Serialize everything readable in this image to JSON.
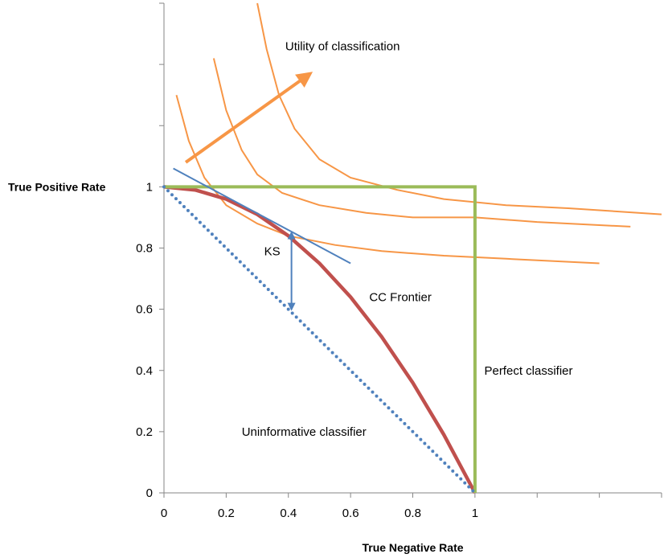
{
  "chart_data": {
    "type": "line",
    "title": "",
    "xlabel": "True Negative Rate",
    "ylabel": "True Positive Rate",
    "xlim": [
      0,
      1.6
    ],
    "ylim": [
      0,
      1.6
    ],
    "x_tick_labels": [
      "0",
      "0.2",
      "0.4",
      "0.6",
      "0.8",
      "1"
    ],
    "x_tick_values": [
      0,
      0.2,
      0.4,
      0.6,
      0.8,
      1
    ],
    "y_tick_labels": [
      "0",
      "0.2",
      "0.4",
      "0.6",
      "0.8",
      "1"
    ],
    "y_tick_values": [
      0,
      0.2,
      0.4,
      0.6,
      0.8,
      1
    ],
    "x_tick_marks": [
      0,
      0.2,
      0.4,
      0.6,
      0.8,
      1,
      1.2,
      1.4,
      1.6
    ],
    "y_tick_marks": [
      0,
      0.2,
      0.4,
      0.6,
      0.8,
      1,
      1.2,
      1.4,
      1.6
    ],
    "grid": false,
    "colors": {
      "cc_frontier": "#c0504d",
      "perfect": "#9bbb59",
      "uninformative": "#4f81bd",
      "tangent": "#4f81bd",
      "ks_arrow": "#4f81bd",
      "utility": "#f79646",
      "axis": "#868686"
    },
    "series": [
      {
        "key": "cc_frontier",
        "style": "solid",
        "x": [
          0,
          0.1,
          0.2,
          0.3,
          0.4,
          0.5,
          0.6,
          0.7,
          0.8,
          0.9,
          1.0
        ],
        "y": [
          1.0,
          0.99,
          0.96,
          0.91,
          0.84,
          0.75,
          0.64,
          0.51,
          0.36,
          0.19,
          0.0
        ]
      },
      {
        "key": "perfect",
        "style": "solid",
        "x": [
          0,
          1,
          1
        ],
        "y": [
          1,
          1,
          0
        ]
      },
      {
        "key": "uninformative",
        "style": "dotted",
        "x": [
          0,
          1
        ],
        "y": [
          1,
          0
        ]
      },
      {
        "key": "tangent",
        "style": "solid",
        "x": [
          0.03,
          0.6
        ],
        "y": [
          1.06,
          0.75
        ]
      }
    ],
    "utility_curves": [
      {
        "x": [
          0.3,
          0.33,
          0.37,
          0.42,
          0.5,
          0.6,
          0.75,
          0.9,
          1.1,
          1.3,
          1.6
        ],
        "y": [
          1.6,
          1.45,
          1.3,
          1.19,
          1.09,
          1.03,
          0.99,
          0.96,
          0.94,
          0.93,
          0.91
        ]
      },
      {
        "x": [
          0.16,
          0.2,
          0.25,
          0.3,
          0.38,
          0.5,
          0.65,
          0.8,
          1.0,
          1.2,
          1.5
        ],
        "y": [
          1.42,
          1.25,
          1.12,
          1.04,
          0.98,
          0.94,
          0.915,
          0.9,
          0.9,
          0.885,
          0.87
        ]
      },
      {
        "x": [
          0.04,
          0.08,
          0.13,
          0.2,
          0.3,
          0.4,
          0.55,
          0.7,
          0.9,
          1.1,
          1.4
        ],
        "y": [
          1.3,
          1.15,
          1.03,
          0.94,
          0.88,
          0.84,
          0.81,
          0.79,
          0.775,
          0.765,
          0.75
        ]
      }
    ],
    "ks_arrow": {
      "x": 0.41,
      "y1": 0.6,
      "y2": 0.85,
      "label": "KS"
    },
    "utility_arrow": {
      "x1": 0.07,
      "y1": 1.08,
      "x2": 0.47,
      "y2": 1.37
    },
    "annotations": [
      {
        "text": "Utility of classification",
        "x": 0.39,
        "y": 1.46
      },
      {
        "text": "CC Frontier",
        "x": 0.66,
        "y": 0.64
      },
      {
        "text": "Perfect classifier",
        "x": 1.03,
        "y": 0.4
      },
      {
        "text": "Uninformative classifier",
        "x": 0.25,
        "y": 0.2
      }
    ]
  }
}
